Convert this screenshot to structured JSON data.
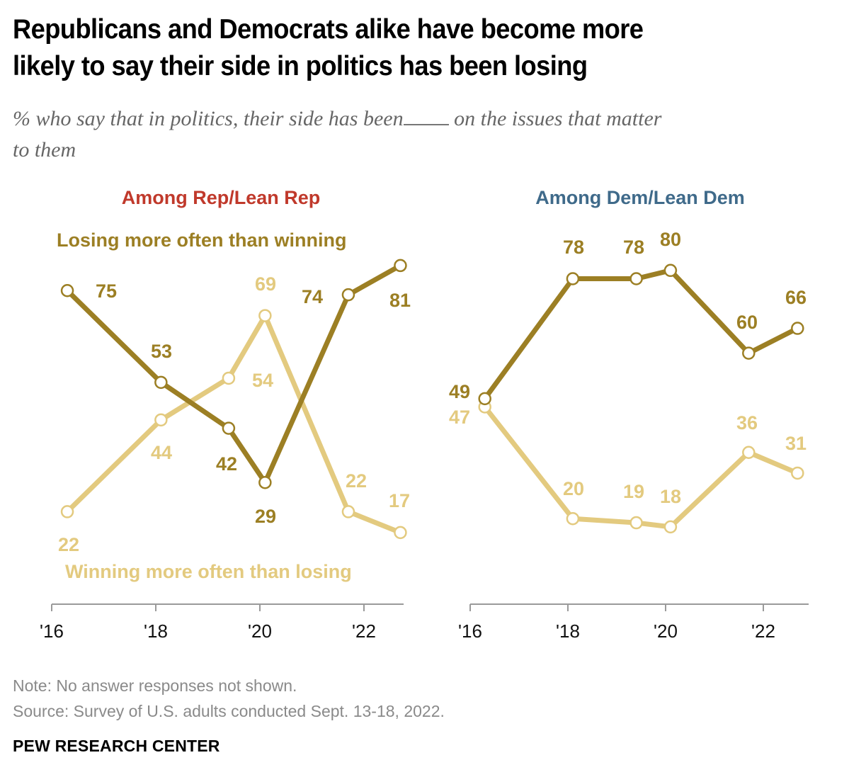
{
  "header": {
    "title_line1": "Republicans and Democrats alike have become more",
    "title_line2": "likely to say their side in politics has been losing",
    "subtitle_part1": "% who say that in politics, their side has been",
    "subtitle_part2": " on the issues that matter",
    "subtitle_line2": "to them"
  },
  "footer": {
    "note": "Note: No answer responses not shown.",
    "source": "Source: Survey of U.S. adults conducted Sept. 13-18, 2022.",
    "brand": "PEW RESEARCH CENTER"
  },
  "colors": {
    "losing": "#9c7f24",
    "winning": "#e3ca7f",
    "rep_title": "#c0392b",
    "dem_title": "#3f6a8a",
    "axis": "#9a9a9a"
  },
  "chart_data": [
    {
      "type": "line",
      "title": "Among Rep/Lean Rep",
      "xlabel": "",
      "ylabel": "",
      "x_ticks": [
        "'16",
        "'18",
        "'20",
        "'22"
      ],
      "x_tick_years": [
        2016,
        2018,
        2020,
        2022
      ],
      "x_range": [
        2016,
        2022.9
      ],
      "ylim": [
        0,
        100
      ],
      "grid": false,
      "series": [
        {
          "name": "Losing more often than winning",
          "x": [
            2016.3,
            2018.1,
            2019.4,
            2020.1,
            2021.7,
            2022.7
          ],
          "values": [
            75,
            53,
            42,
            29,
            74,
            81
          ],
          "label_offsets": [
            "right",
            "above",
            "below-left",
            "below",
            "left",
            "below-right"
          ]
        },
        {
          "name": "Winning more often than losing",
          "x": [
            2016.3,
            2018.1,
            2019.4,
            2020.1,
            2021.7,
            2022.7
          ],
          "values": [
            22,
            44,
            54,
            69,
            22,
            17
          ],
          "label_offsets": [
            "below",
            "below",
            "right",
            "above",
            "above",
            "above"
          ]
        }
      ],
      "annotations": [
        "Losing more often than winning",
        "Winning more often than losing"
      ]
    },
    {
      "type": "line",
      "title": "Among Dem/Lean Dem",
      "xlabel": "",
      "ylabel": "",
      "x_ticks": [
        "'16",
        "'18",
        "'20",
        "'22"
      ],
      "x_tick_years": [
        2016,
        2018,
        2020,
        2022
      ],
      "x_range": [
        2016,
        2022.9
      ],
      "ylim": [
        0,
        100
      ],
      "grid": false,
      "series": [
        {
          "name": "Losing more often than winning",
          "x": [
            2016.3,
            2018.1,
            2019.4,
            2020.1,
            2021.7,
            2022.7
          ],
          "values": [
            49,
            78,
            78,
            80,
            60,
            66
          ],
          "label_offsets": [
            "left",
            "above",
            "above",
            "above",
            "above",
            "above"
          ]
        },
        {
          "name": "Winning more often than losing",
          "x": [
            2016.3,
            2018.1,
            2019.4,
            2020.1,
            2021.7,
            2022.7
          ],
          "values": [
            47,
            20,
            19,
            18,
            36,
            31
          ],
          "label_offsets": [
            "left",
            "above",
            "above",
            "above",
            "above",
            "above"
          ]
        }
      ]
    }
  ]
}
